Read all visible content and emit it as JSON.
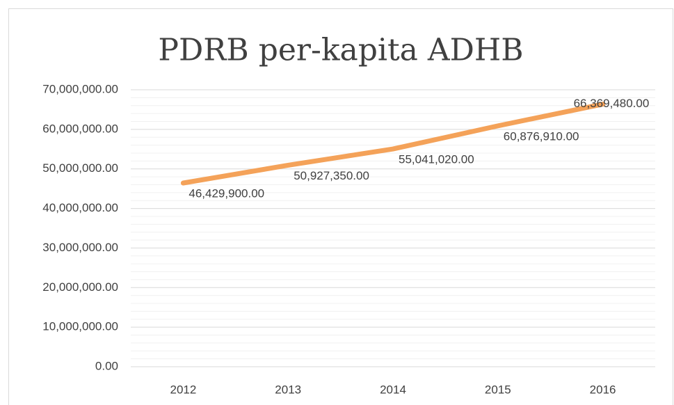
{
  "chart_data": {
    "type": "line",
    "title": "PDRB per-kapita ADHB",
    "categories": [
      "2012",
      "2013",
      "2014",
      "2015",
      "2016"
    ],
    "series": [
      {
        "name": "PDRB per-kapita ADHB",
        "color": "#f4a259",
        "values": [
          46429900,
          50927350,
          55041020,
          60876910,
          66369480
        ],
        "value_labels": [
          "46,429,900.00",
          "50,927,350.00",
          "55,041,020.00",
          "60,876,910.00",
          "66,369,480.00"
        ]
      }
    ],
    "ylim": [
      0,
      70000000
    ],
    "yticks": [
      {
        "value": 0,
        "label": "0.00"
      },
      {
        "value": 10000000,
        "label": "10,000,000.00"
      },
      {
        "value": 20000000,
        "label": "20,000,000.00"
      },
      {
        "value": 30000000,
        "label": "30,000,000.00"
      },
      {
        "value": 40000000,
        "label": "40,000,000.00"
      },
      {
        "value": 50000000,
        "label": "50,000,000.00"
      },
      {
        "value": 60000000,
        "label": "60,000,000.00"
      },
      {
        "value": 70000000,
        "label": "70,000,000.00"
      }
    ],
    "yminorticks": [
      2000000,
      4000000,
      6000000,
      8000000,
      12000000,
      14000000,
      16000000,
      18000000,
      22000000,
      24000000,
      26000000,
      28000000,
      32000000,
      34000000,
      36000000,
      38000000,
      42000000,
      44000000,
      46000000,
      48000000,
      52000000,
      54000000,
      56000000,
      58000000,
      62000000,
      64000000,
      66000000,
      68000000
    ],
    "grid": true
  }
}
